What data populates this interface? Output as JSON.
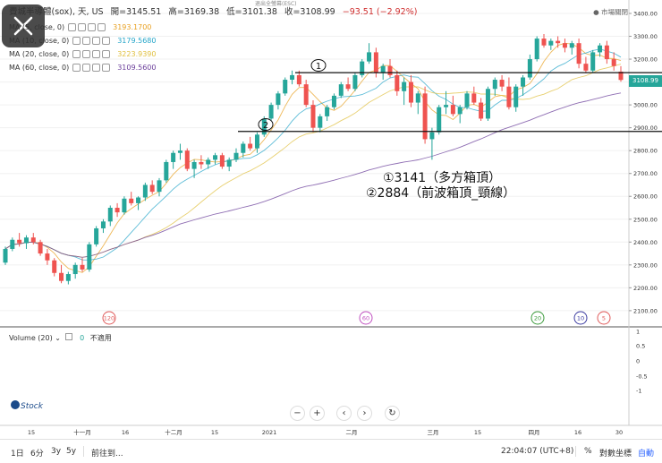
{
  "header": {
    "symbol": "費城半導體(sox), 天, US",
    "open": "開=3145.51",
    "high": "高=3169.38",
    "low": "低=3101.38",
    "close": "收=3108.99",
    "change": "−93.51 (−2.92%)",
    "market_status": "市場關閉",
    "esc_hint": "退出全螢幕(ESC)"
  },
  "indicators": [
    {
      "label": "MA (5, close, 0)",
      "value": "3193.1700",
      "color": "#e8a020"
    },
    {
      "label": "MA (10, close, 0)",
      "value": "3179.5680",
      "color": "#26a6c9"
    },
    {
      "label": "MA (20, close, 0)",
      "value": "3223.9390",
      "color": "#e0c040"
    },
    {
      "label": "MA (60, close, 0)",
      "value": "3109.5600",
      "color": "#6a3d9a"
    }
  ],
  "price_tag": "3108.99",
  "price_axis": [
    "3400.00",
    "3300.00",
    "3200.00",
    "3100.00",
    "3000.00",
    "2900.00",
    "2800.00",
    "2700.00",
    "2600.00",
    "2500.00",
    "2400.00",
    "2300.00",
    "2200.00",
    "2100.00"
  ],
  "volume": {
    "label": "Volume (20)",
    "value": "0",
    "note": "不適用",
    "axis": [
      "1",
      "0.5",
      "0",
      "-0.5",
      "-1"
    ]
  },
  "time_axis": [
    "15",
    "十一月",
    "16",
    "十二月",
    "15",
    "2021",
    "二月",
    "三月",
    "15",
    "四月",
    "16",
    "30"
  ],
  "markers": [
    {
      "label": "120",
      "color": "#e05a5a"
    },
    {
      "label": "60",
      "color": "#c050c0"
    },
    {
      "label": "20",
      "color": "#3a9a3a"
    },
    {
      "label": "10",
      "color": "#3a3aa0"
    },
    {
      "label": "5",
      "color": "#e05a5a"
    }
  ],
  "hand_marks": [
    "1",
    "2"
  ],
  "annotations": [
    "①3141（多方箱頂）",
    "②2884（前波箱頂_頸線）"
  ],
  "bottom": {
    "ranges": [
      "1日",
      "6分",
      "3y",
      "5y"
    ],
    "goto": "前往到...",
    "time": "22:04:07 (UTC+8)",
    "percent": "%",
    "log": "對數坐標",
    "auto": "自動"
  },
  "chart_data": {
    "type": "candlestick",
    "levels": [
      {
        "label": "①",
        "value": 3141
      },
      {
        "label": "②",
        "value": 2884
      }
    ],
    "ylim": [
      2050,
      3450
    ],
    "candles": [
      [
        2310,
        2380,
        2300,
        2370
      ],
      [
        2370,
        2420,
        2360,
        2410
      ],
      [
        2410,
        2440,
        2380,
        2395
      ],
      [
        2395,
        2430,
        2370,
        2420
      ],
      [
        2420,
        2440,
        2390,
        2400
      ],
      [
        2400,
        2410,
        2340,
        2350
      ],
      [
        2350,
        2370,
        2300,
        2320
      ],
      [
        2320,
        2330,
        2250,
        2265
      ],
      [
        2265,
        2300,
        2220,
        2230
      ],
      [
        2230,
        2270,
        2215,
        2260
      ],
      [
        2260,
        2310,
        2240,
        2300
      ],
      [
        2300,
        2330,
        2270,
        2280
      ],
      [
        2280,
        2400,
        2270,
        2390
      ],
      [
        2390,
        2470,
        2380,
        2460
      ],
      [
        2460,
        2500,
        2440,
        2490
      ],
      [
        2490,
        2560,
        2470,
        2550
      ],
      [
        2550,
        2570,
        2510,
        2530
      ],
      [
        2530,
        2600,
        2520,
        2590
      ],
      [
        2590,
        2620,
        2560,
        2570
      ],
      [
        2570,
        2600,
        2540,
        2595
      ],
      [
        2595,
        2660,
        2580,
        2650
      ],
      [
        2650,
        2670,
        2610,
        2620
      ],
      [
        2620,
        2680,
        2600,
        2670
      ],
      [
        2670,
        2760,
        2660,
        2750
      ],
      [
        2750,
        2800,
        2720,
        2790
      ],
      [
        2790,
        2830,
        2760,
        2800
      ],
      [
        2800,
        2810,
        2710,
        2720
      ],
      [
        2720,
        2760,
        2680,
        2750
      ],
      [
        2750,
        2780,
        2720,
        2740
      ],
      [
        2740,
        2770,
        2720,
        2760
      ],
      [
        2760,
        2790,
        2740,
        2780
      ],
      [
        2780,
        2790,
        2720,
        2730
      ],
      [
        2730,
        2770,
        2710,
        2760
      ],
      [
        2760,
        2810,
        2750,
        2790
      ],
      [
        2790,
        2840,
        2770,
        2830
      ],
      [
        2830,
        2860,
        2800,
        2810
      ],
      [
        2810,
        2880,
        2790,
        2870
      ],
      [
        2870,
        2950,
        2860,
        2940
      ],
      [
        2940,
        3010,
        2930,
        3000
      ],
      [
        3000,
        3060,
        2980,
        3050
      ],
      [
        3050,
        3120,
        3040,
        3110
      ],
      [
        3110,
        3150,
        3090,
        3130
      ],
      [
        3130,
        3150,
        3080,
        3090
      ],
      [
        3090,
        3110,
        2990,
        3000
      ],
      [
        3000,
        3020,
        2880,
        2900
      ],
      [
        2900,
        2960,
        2880,
        2950
      ],
      [
        2950,
        3000,
        2930,
        2990
      ],
      [
        2990,
        3050,
        2980,
        3040
      ],
      [
        3040,
        3100,
        3030,
        3090
      ],
      [
        3090,
        3120,
        3060,
        3070
      ],
      [
        3070,
        3140,
        3060,
        3130
      ],
      [
        3130,
        3200,
        3120,
        3190
      ],
      [
        3190,
        3270,
        3180,
        3230
      ],
      [
        3230,
        3250,
        3120,
        3140
      ],
      [
        3140,
        3180,
        3110,
        3170
      ],
      [
        3170,
        3200,
        3120,
        3130
      ],
      [
        3130,
        3150,
        3040,
        3060
      ],
      [
        3060,
        3120,
        3000,
        3100
      ],
      [
        3100,
        3130,
        2990,
        3010
      ],
      [
        3010,
        3060,
        2960,
        3050
      ],
      [
        3050,
        3080,
        2830,
        2850
      ],
      [
        2850,
        2900,
        2760,
        2880
      ],
      [
        2880,
        3000,
        2870,
        2990
      ],
      [
        2990,
        3060,
        2960,
        3000
      ],
      [
        3000,
        3040,
        2950,
        2960
      ],
      [
        2960,
        3000,
        2920,
        2990
      ],
      [
        2990,
        3060,
        2980,
        3050
      ],
      [
        3050,
        3080,
        3000,
        3010
      ],
      [
        3010,
        3030,
        2930,
        2940
      ],
      [
        2940,
        3080,
        2930,
        3070
      ],
      [
        3070,
        3120,
        3040,
        3110
      ],
      [
        3110,
        3130,
        3060,
        3080
      ],
      [
        3080,
        3120,
        2980,
        2990
      ],
      [
        2990,
        3090,
        2970,
        3080
      ],
      [
        3080,
        3130,
        3040,
        3120
      ],
      [
        3120,
        3220,
        3110,
        3200
      ],
      [
        3200,
        3300,
        3190,
        3290
      ],
      [
        3290,
        3310,
        3250,
        3260
      ],
      [
        3260,
        3290,
        3240,
        3280
      ],
      [
        3280,
        3300,
        3250,
        3270
      ],
      [
        3270,
        3290,
        3230,
        3250
      ],
      [
        3250,
        3280,
        3220,
        3270
      ],
      [
        3270,
        3290,
        3160,
        3180
      ],
      [
        3180,
        3210,
        3140,
        3150
      ],
      [
        3150,
        3240,
        3140,
        3230
      ],
      [
        3230,
        3270,
        3210,
        3260
      ],
      [
        3260,
        3280,
        3180,
        3200
      ],
      [
        3200,
        3230,
        3150,
        3170
      ],
      [
        3145.51,
        3169.38,
        3101.38,
        3108.99
      ]
    ]
  }
}
